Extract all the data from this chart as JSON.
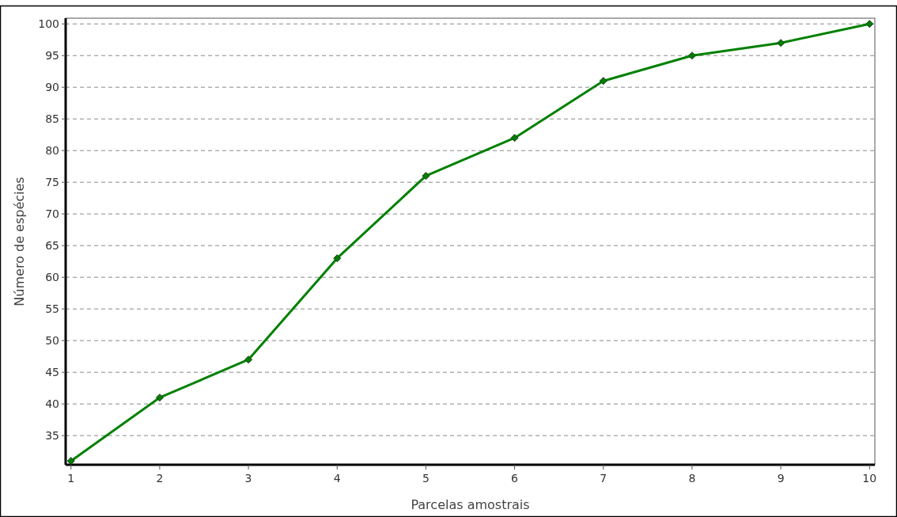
{
  "chart_data": {
    "type": "line",
    "xlabel": "Parcelas amostrais",
    "ylabel": "Número de espécies",
    "x": [
      1,
      2,
      3,
      4,
      5,
      6,
      7,
      8,
      9,
      10
    ],
    "series": [
      {
        "color": "#008000",
        "values": [
          31,
          41,
          47,
          63,
          76,
          82,
          91,
          95,
          97,
          100
        ]
      }
    ],
    "xlim": [
      0.94,
      10.06
    ],
    "xticks": [
      1,
      2,
      3,
      4,
      5,
      6,
      7,
      8,
      9,
      10
    ],
    "ylim": [
      30.4,
      100.9
    ],
    "yticks": [
      35,
      40,
      45,
      50,
      55,
      60,
      65,
      70,
      75,
      80,
      85,
      90,
      95,
      100
    ],
    "grid": "y",
    "marker": "diamond",
    "line_style": "solid"
  }
}
